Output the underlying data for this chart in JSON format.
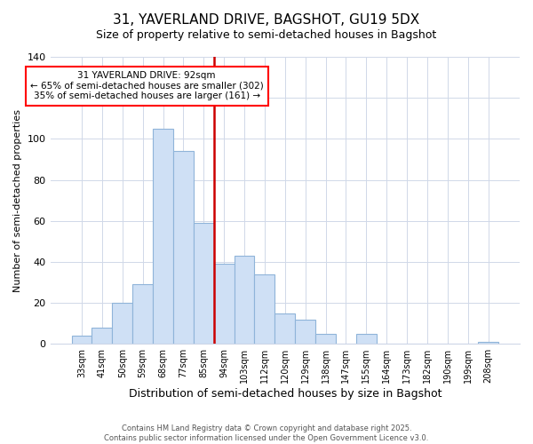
{
  "title": "31, YAVERLAND DRIVE, BAGSHOT, GU19 5DX",
  "subtitle": "Size of property relative to semi-detached houses in Bagshot",
  "xlabel": "Distribution of semi-detached houses by size in Bagshot",
  "ylabel": "Number of semi-detached properties",
  "bar_labels": [
    "33sqm",
    "41sqm",
    "50sqm",
    "59sqm",
    "68sqm",
    "77sqm",
    "85sqm",
    "94sqm",
    "103sqm",
    "112sqm",
    "120sqm",
    "129sqm",
    "138sqm",
    "147sqm",
    "155sqm",
    "164sqm",
    "173sqm",
    "182sqm",
    "190sqm",
    "199sqm",
    "208sqm"
  ],
  "bar_heights": [
    4,
    8,
    20,
    29,
    105,
    94,
    59,
    39,
    43,
    34,
    15,
    12,
    5,
    0,
    5,
    0,
    0,
    0,
    0,
    0,
    1
  ],
  "bar_color": "#cfe0f5",
  "bar_edge_color": "#8fb4d9",
  "vline_color": "#cc0000",
  "annotation_title": "31 YAVERLAND DRIVE: 92sqm",
  "annotation_line1": "← 65% of semi-detached houses are smaller (302)",
  "annotation_line2": "35% of semi-detached houses are larger (161) →",
  "ylim": [
    0,
    140
  ],
  "yticks": [
    0,
    20,
    40,
    60,
    80,
    100,
    120,
    140
  ],
  "title_fontsize": 11,
  "subtitle_fontsize": 9,
  "xlabel_fontsize": 9,
  "ylabel_fontsize": 8,
  "footer1": "Contains HM Land Registry data © Crown copyright and database right 2025.",
  "footer2": "Contains public sector information licensed under the Open Government Licence v3.0.",
  "background_color": "#ffffff",
  "grid_color": "#d0d8e8"
}
